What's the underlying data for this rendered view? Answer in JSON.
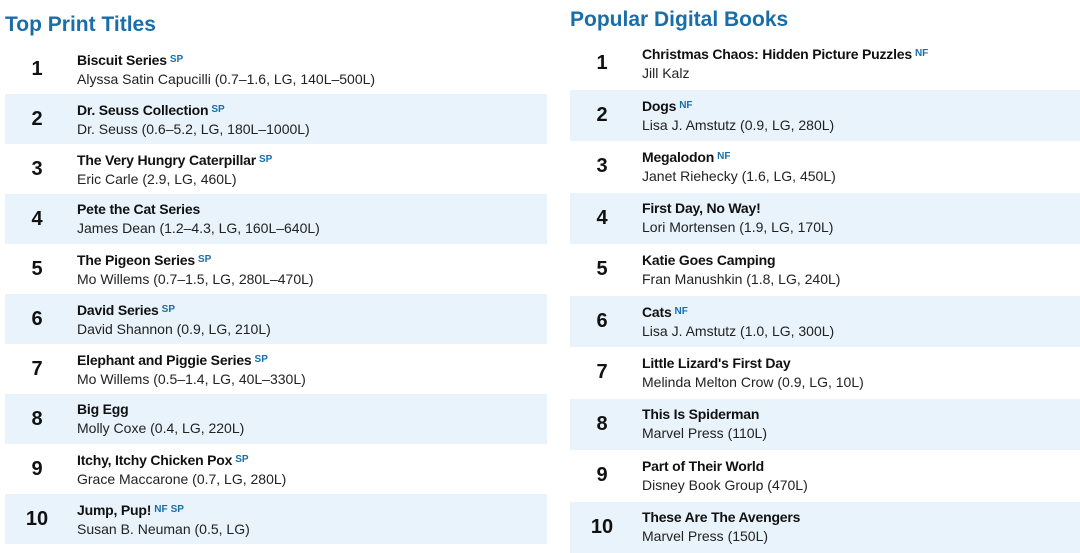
{
  "print": {
    "heading": "Top Print Titles",
    "items": [
      {
        "rank": "1",
        "title": "Biscuit Series",
        "tags": [
          "SP"
        ],
        "sub": "Alyssa Satin Capucilli (0.7–1.6, LG, 140L–500L)"
      },
      {
        "rank": "2",
        "title": "Dr. Seuss Collection",
        "tags": [
          "SP"
        ],
        "sub": "Dr. Seuss (0.6–5.2, LG, 180L–1000L)"
      },
      {
        "rank": "3",
        "title": "The Very Hungry Caterpillar",
        "tags": [
          "SP"
        ],
        "sub": "Eric Carle (2.9, LG, 460L)"
      },
      {
        "rank": "4",
        "title": "Pete the Cat Series",
        "tags": [],
        "sub": "James Dean (1.2–4.3, LG, 160L–640L)"
      },
      {
        "rank": "5",
        "title": "The Pigeon Series",
        "tags": [
          "SP"
        ],
        "sub": "Mo Willems (0.7–1.5, LG, 280L–470L)"
      },
      {
        "rank": "6",
        "title": "David Series",
        "tags": [
          "SP"
        ],
        "sub": "David Shannon (0.9, LG, 210L)"
      },
      {
        "rank": "7",
        "title": "Elephant and Piggie Series",
        "tags": [
          "SP"
        ],
        "sub": "Mo Willems (0.5–1.4, LG, 40L–330L)"
      },
      {
        "rank": "8",
        "title": "Big Egg",
        "tags": [],
        "sub": "Molly Coxe (0.4, LG, 220L)"
      },
      {
        "rank": "9",
        "title": "Itchy, Itchy Chicken Pox",
        "tags": [
          "SP"
        ],
        "sub": "Grace Maccarone (0.7, LG, 280L)"
      },
      {
        "rank": "10",
        "title": "Jump, Pup!",
        "tags": [
          "NF",
          "SP"
        ],
        "sub": "Susan B. Neuman (0.5, LG)"
      }
    ]
  },
  "digital": {
    "heading": "Popular Digital Books",
    "items": [
      {
        "rank": "1",
        "title": "Christmas Chaos: Hidden Picture Puzzles",
        "tags": [
          "NF"
        ],
        "sub": "Jill Kalz"
      },
      {
        "rank": "2",
        "title": "Dogs",
        "tags": [
          "NF"
        ],
        "sub": "Lisa J. Amstutz (0.9, LG, 280L)"
      },
      {
        "rank": "3",
        "title": "Megalodon",
        "tags": [
          "NF"
        ],
        "sub": "Janet Riehecky (1.6, LG, 450L)"
      },
      {
        "rank": "4",
        "title": "First Day, No Way!",
        "tags": [],
        "sub": "Lori Mortensen (1.9, LG, 170L)"
      },
      {
        "rank": "5",
        "title": "Katie Goes Camping",
        "tags": [],
        "sub": "Fran Manushkin (1.8, LG, 240L)"
      },
      {
        "rank": "6",
        "title": "Cats",
        "tags": [
          "NF"
        ],
        "sub": "Lisa J. Amstutz (1.0, LG, 300L)"
      },
      {
        "rank": "7",
        "title": "Little Lizard's First Day",
        "tags": [],
        "sub": "Melinda Melton Crow (0.9, LG, 10L)"
      },
      {
        "rank": "8",
        "title": "This Is Spiderman",
        "tags": [],
        "sub": "Marvel Press (110L)"
      },
      {
        "rank": "9",
        "title": "Part of Their World",
        "tags": [],
        "sub": "Disney Book Group (470L)"
      },
      {
        "rank": "10",
        "title": "These Are The Avengers",
        "tags": [],
        "sub": "Marvel Press (150L)"
      }
    ]
  },
  "colors": {
    "heading": "#1a6ea8",
    "tag": "#1a6ea8",
    "row_shade": "#e8f3fb",
    "text": "#111111"
  }
}
